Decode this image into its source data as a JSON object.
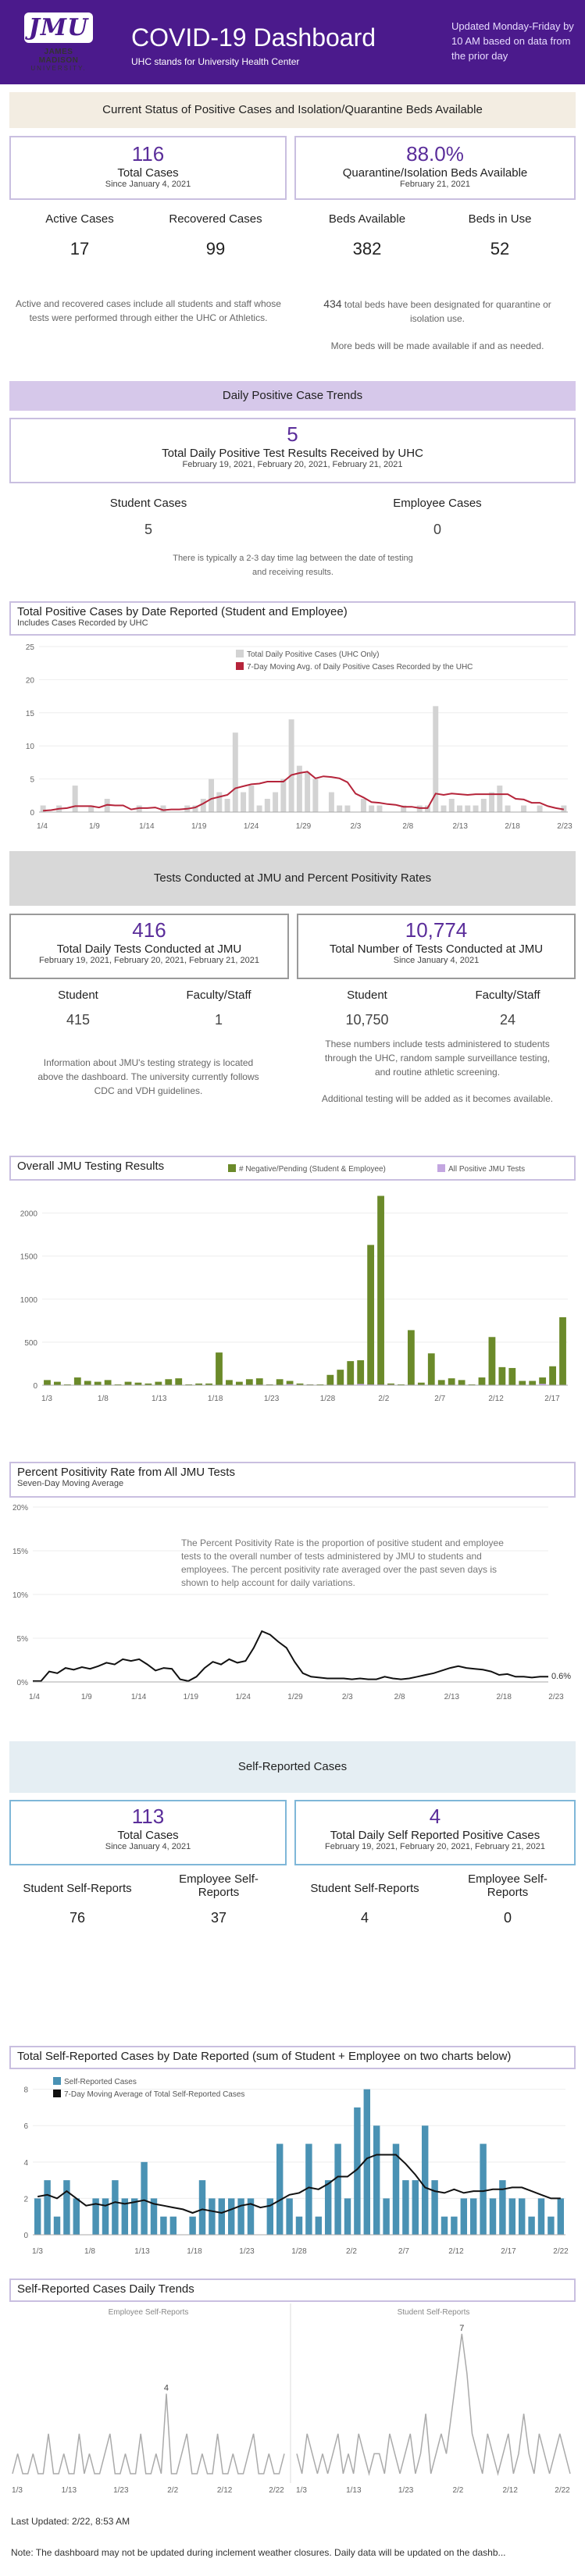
{
  "header": {
    "logo_text": "JMU",
    "logo_name": "JAMES MADISON",
    "logo_univ": "UNIVERSITY.",
    "title": "COVID-19 Dashboard",
    "subtitle": "UHC stands for University Health Center",
    "update_note": "Updated Monday-Friday by 10 AM based on data from the prior day"
  },
  "status": {
    "band": "Current Status of Positive Cases and Isolation/Quarantine Beds Available",
    "total_cases": "116",
    "total_cases_label": "Total Cases",
    "total_cases_since": "Since January 4, 2021",
    "beds_pct": "88.0%",
    "beds_pct_label": "Quarantine/Isolation Beds Available",
    "beds_pct_date": "February 21, 2021",
    "active_label": "Active Cases",
    "active_value": "17",
    "recovered_label": "Recovered Cases",
    "recovered_value": "99",
    "beds_avail_label": "Beds Available",
    "beds_avail_value": "382",
    "beds_use_label": "Beds in Use",
    "beds_use_value": "52",
    "note_left": "Active and recovered cases include all students and staff whose tests were performed through either the UHC or Athletics.",
    "note_right_num": "434",
    "note_right": "total beds have been designated for quarantine or isolation use.",
    "note_right2": "More beds will be made available if and as needed."
  },
  "daily": {
    "band": "Daily Positive Case Trends",
    "value": "5",
    "label": "Total Daily Positive Test Results Received by UHC",
    "dates": "February 19, 2021, February 20, 2021, February 21, 2021",
    "student_label": "Student Cases",
    "student_value": "5",
    "employee_label": "Employee Cases",
    "employee_value": "0",
    "note": "There is typically a 2-3 day time lag between the date of testing and receiving results."
  },
  "tests": {
    "band": "Tests Conducted at JMU and Percent Positivity Rates",
    "daily_value": "416",
    "daily_label": "Total Daily Tests Conducted at JMU",
    "daily_dates": "February 19, 2021, February 20, 2021, February 21, 2021",
    "total_value": "10,774",
    "total_label": "Total Number of Tests Conducted at JMU",
    "total_since": "Since January 4, 2021",
    "d_student_label": "Student",
    "d_student_value": "415",
    "d_staff_label": "Faculty/Staff",
    "d_staff_value": "1",
    "t_student_label": "Student",
    "t_student_value": "10,750",
    "t_staff_label": "Faculty/Staff",
    "t_staff_value": "24",
    "note_left": "Information about JMU's testing strategy is located above the dashboard. The university currently follows CDC and VDH guidelines.",
    "note_right": "These numbers include tests administered to students through the UHC, random sample surveillance testing, and routine athletic screening.",
    "note_right2": "Additional testing will be added as it becomes available."
  },
  "self": {
    "band": "Self-Reported Cases",
    "total_value": "113",
    "total_label": "Total Cases",
    "total_since": "Since January 4, 2021",
    "daily_value": "4",
    "daily_label": "Total Daily Self Reported Positive Cases",
    "daily_dates": "February 19, 2021, February 20, 2021, February 21, 2021",
    "t_student_label": "Student Self-Reports",
    "t_student_value": "76",
    "t_emp_label": "Employee Self-Reports",
    "t_emp_value": "37",
    "d_student_label": "Student Self-Reports",
    "d_student_value": "4",
    "d_emp_label": "Employee Self-Reports",
    "d_emp_value": "0"
  },
  "footer": {
    "updated": "Last Updated: 2/22, 8:53 AM",
    "note": "Note: The dashboard may not be updated during inclement weather closures. Daily data will be updated on the dashb..."
  },
  "colors": {
    "purple": "#4b1a8c",
    "gray_bar": "#d3d3d3",
    "moving_avg": "#b5243a",
    "green_bar": "#6b8a2a",
    "positive": "#c3a6e0",
    "blue_bar": "#4a92b4"
  },
  "chart_data": [
    {
      "type": "bar",
      "title": "Total Positive Cases by Date Reported (Student and Employee)",
      "subtitle": "Includes Cases Recorded by UHC",
      "x_ticks": [
        "1/4",
        "1/9",
        "1/14",
        "1/19",
        "1/24",
        "1/29",
        "2/3",
        "2/8",
        "2/13",
        "2/18",
        "2/23"
      ],
      "y_ticks": [
        0,
        5,
        10,
        15,
        20,
        25
      ],
      "ylim": [
        0,
        25
      ],
      "legend": [
        "Total Daily Positive Cases (UHC Only)",
        "7-Day Moving Avg. of Daily Positive Cases Recorded by the UHC"
      ],
      "series": [
        {
          "name": "Total Daily Positive Cases (UHC Only)",
          "values": [
            1,
            0,
            1,
            0,
            4,
            0,
            1,
            0,
            2,
            0,
            0,
            0,
            1,
            0,
            0,
            1,
            0,
            0,
            1,
            1,
            2,
            5,
            3,
            2,
            12,
            3,
            4,
            1,
            2,
            3,
            5,
            14,
            7,
            6,
            5,
            0,
            3,
            1,
            1,
            0,
            2,
            1,
            1,
            0,
            0,
            1,
            0,
            1,
            1,
            16,
            1,
            2,
            1,
            1,
            1,
            2,
            3,
            4,
            1,
            0,
            1,
            0,
            1,
            0,
            0,
            1
          ]
        },
        {
          "name": "7-Day Moving Avg. of Daily Positive Cases Recorded by the UHC",
          "values": [
            0.2,
            0.3,
            0.5,
            0.6,
            0.9,
            0.9,
            0.9,
            0.7,
            1.1,
            1.0,
            1.0,
            0.4,
            0.6,
            0.6,
            0.7,
            0.3,
            0.4,
            0.4,
            0.5,
            0.7,
            1.3,
            2.0,
            2.3,
            2.6,
            3.6,
            3.9,
            4.2,
            4.3,
            4.6,
            4.6,
            4.6,
            5.6,
            5.9,
            6.1,
            5.1,
            5.4,
            5.3,
            5.1,
            4.5,
            2.8,
            2.2,
            1.5,
            1.4,
            1.2,
            1.1,
            0.8,
            0.8,
            0.6,
            0.6,
            2.8,
            2.6,
            2.8,
            2.7,
            2.6,
            2.7,
            2.7,
            2.7,
            2.7,
            2.7,
            2.0,
            1.9,
            1.4,
            1.4,
            0.9,
            0.6,
            0.4
          ]
        }
      ]
    },
    {
      "type": "bar",
      "title": "Overall JMU Testing Results",
      "x_ticks": [
        "1/3",
        "1/8",
        "1/13",
        "1/18",
        "1/23",
        "1/28",
        "2/2",
        "2/7",
        "2/12",
        "2/17"
      ],
      "y_ticks": [
        0,
        500,
        1000,
        1500,
        2000
      ],
      "ylim": [
        0,
        2250
      ],
      "legend": [
        "# Negative/Pending (Student & Employee)",
        "All Positive JMU Tests"
      ],
      "series": [
        {
          "name": "# Negative/Pending (Student & Employee)",
          "values": [
            60,
            40,
            10,
            90,
            50,
            40,
            60,
            10,
            40,
            30,
            20,
            40,
            70,
            80,
            10,
            20,
            20,
            380,
            60,
            40,
            70,
            80,
            10,
            70,
            50,
            20,
            10,
            10,
            120,
            180,
            280,
            290,
            1630,
            2200,
            20,
            10,
            640,
            30,
            370,
            60,
            80,
            60,
            10,
            90,
            560,
            210,
            200,
            50,
            50,
            90,
            220,
            790
          ]
        },
        {
          "name": "All Positive JMU Tests",
          "values": [
            1,
            0,
            1,
            0,
            4,
            0,
            1,
            0,
            2,
            0,
            0,
            0,
            1,
            0,
            0,
            1,
            0,
            0,
            1,
            1,
            2,
            5,
            3,
            2,
            12,
            3,
            4,
            1,
            2,
            3,
            5,
            14,
            7,
            6,
            5,
            0,
            3,
            1,
            1,
            0,
            2,
            1,
            1,
            0,
            0,
            1,
            0,
            1,
            1,
            16,
            1,
            2
          ]
        }
      ]
    },
    {
      "type": "line",
      "title": "Percent Positivity Rate from All JMU Tests",
      "subtitle": "Seven-Day Moving Average",
      "x_ticks": [
        "1/4",
        "1/9",
        "1/14",
        "1/19",
        "1/24",
        "1/29",
        "2/3",
        "2/8",
        "2/13",
        "2/18",
        "2/23"
      ],
      "y_ticks": [
        "0%",
        "5%",
        "10%",
        "15%",
        "20%"
      ],
      "ylim": [
        0,
        20
      ],
      "annotation": "The Percent Positivity Rate is the proportion of positive student and employee tests to the overall number of tests administered by JMU to students and employees.  The percent positivity rate averaged over the past seven days is shown to help account for daily variations.",
      "end_label": "0.6%",
      "values": [
        0.1,
        0.1,
        1.2,
        1.0,
        1.6,
        1.4,
        1.7,
        1.5,
        1.8,
        2.2,
        2.0,
        2.6,
        2.4,
        2.6,
        2.0,
        1.3,
        1.6,
        1.5,
        0.3,
        0.1,
        0.6,
        1.6,
        2.3,
        2.0,
        2.6,
        2.2,
        2.4,
        3.9,
        5.8,
        5.4,
        4.6,
        3.9,
        2.3,
        1.0,
        0.6,
        0.5,
        0.4,
        0.4,
        0.4,
        0.3,
        0.4,
        0.3,
        0.3,
        0.6,
        0.4,
        0.3,
        0.4,
        0.6,
        0.8,
        1.0,
        1.3,
        1.6,
        1.8,
        1.6,
        1.5,
        1.4,
        1.2,
        0.8,
        0.9,
        0.6,
        0.6,
        0.5,
        0.6,
        0.6
      ]
    },
    {
      "type": "bar",
      "title": "Total Self-Reported Cases by Date Reported (sum of Student + Employee on two charts below)",
      "x_ticks": [
        "1/3",
        "1/8",
        "1/13",
        "1/18",
        "1/23",
        "1/28",
        "2/2",
        "2/7",
        "2/12",
        "2/17",
        "2/22"
      ],
      "y_ticks": [
        0,
        2,
        4,
        6,
        8
      ],
      "ylim": [
        0,
        8.5
      ],
      "legend": [
        "Self-Reported Cases",
        "7-Day Moving Average of Total Self-Reported Cases"
      ],
      "series": [
        {
          "name": "Self-Reported Cases",
          "values": [
            2,
            3,
            1,
            3,
            2,
            0,
            2,
            2,
            3,
            2,
            2,
            4,
            2,
            1,
            1,
            0,
            1,
            3,
            2,
            2,
            2,
            2,
            2,
            0,
            2,
            5,
            2,
            1,
            5,
            1,
            3,
            5,
            2,
            7,
            8,
            6,
            2,
            5,
            3,
            3,
            6,
            3,
            1,
            1,
            2,
            2,
            5,
            2,
            3,
            2,
            2,
            1,
            2,
            1,
            2
          ]
        },
        {
          "name": "7-Day Moving Average of Total Self-Reported Cases",
          "values": [
            2.1,
            2.2,
            2.0,
            2.4,
            2.0,
            1.6,
            1.7,
            1.6,
            1.8,
            1.7,
            1.8,
            1.9,
            1.7,
            1.6,
            1.5,
            1.4,
            1.2,
            1.4,
            1.3,
            1.2,
            1.4,
            1.6,
            1.7,
            1.5,
            1.6,
            1.9,
            2.2,
            2.3,
            2.6,
            2.5,
            2.8,
            3.2,
            3.2,
            3.6,
            4.2,
            4.4,
            4.4,
            4.4,
            3.9,
            3.3,
            2.6,
            2.4,
            2.3,
            2.5,
            2.3,
            2.4,
            2.4,
            2.5,
            2.5,
            2.6,
            2.6,
            2.4,
            2.2,
            2.0,
            2.0
          ]
        }
      ]
    },
    {
      "type": "line",
      "title": "Self-Reported Cases Daily Trends",
      "panels": [
        {
          "name": "Employee Self-Reports",
          "x_ticks": [
            "1/3",
            "1/13",
            "1/23",
            "2/2",
            "2/12",
            "2/22"
          ],
          "peak_label": "4",
          "values": [
            0,
            1,
            0,
            0,
            1,
            0,
            0,
            2,
            0,
            0,
            1,
            0,
            0,
            2,
            0,
            1,
            0,
            0,
            1,
            2,
            0,
            0,
            1,
            0,
            0,
            2,
            0,
            0,
            1,
            0,
            4,
            0,
            0,
            1,
            2,
            0,
            0,
            1,
            0,
            0,
            2,
            0,
            0,
            1,
            0,
            0,
            1,
            2,
            0,
            0,
            1,
            0,
            0,
            1
          ]
        },
        {
          "name": "Student Self-Reports",
          "x_ticks": [
            "1/3",
            "1/13",
            "1/23",
            "2/2",
            "2/12",
            "2/22"
          ],
          "peak_label": "7",
          "values": [
            1,
            0,
            2,
            1,
            0,
            1,
            0,
            1,
            2,
            0,
            1,
            0,
            2,
            1,
            0,
            1,
            1,
            0,
            2,
            1,
            0,
            1,
            2,
            0,
            1,
            3,
            0,
            1,
            2,
            1,
            3,
            5,
            7,
            5,
            2,
            1,
            0,
            2,
            1,
            0,
            1,
            2,
            0,
            1,
            3,
            1,
            0,
            2,
            1,
            0,
            1,
            2,
            1,
            0
          ]
        }
      ]
    }
  ]
}
